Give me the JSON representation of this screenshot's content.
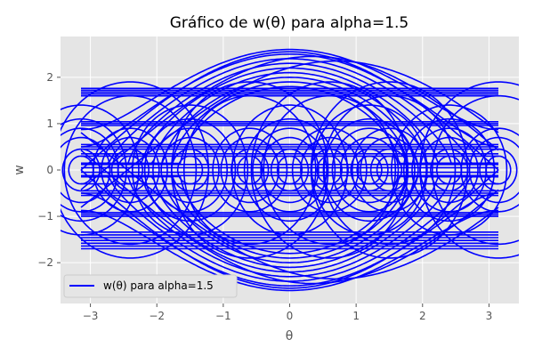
{
  "chart_data": {
    "type": "line",
    "title": "Gráfico de w(θ) para alpha=1.5",
    "xlabel": "θ",
    "ylabel": "w",
    "xlim": [
      -3.45,
      3.45
    ],
    "ylim": [
      -2.88,
      2.88
    ],
    "x_ticks": [
      -3,
      -2,
      -1,
      0,
      1,
      2,
      3
    ],
    "x_tick_labels": [
      "−3",
      "−2",
      "−1",
      "0",
      "1",
      "2",
      "3"
    ],
    "y_ticks": [
      -2,
      -1,
      0,
      1,
      2
    ],
    "y_tick_labels": [
      "−2",
      "−1",
      "0",
      "1",
      "2"
    ],
    "grid": true,
    "style": "ggplot",
    "legend_position": "lower left",
    "line_color": "#0000ff",
    "series": [
      {
        "name": "w(θ) para alpha=1.5",
        "description": "phase portrait trajectories of a pendulum-like system",
        "families": {
          "rotating_upper_w_at_theta0": [
            1.8,
            1.9,
            2.0,
            2.1,
            2.2,
            2.3,
            2.4,
            2.5,
            2.6
          ],
          "rotating_lower_w_at_theta0": [
            -1.8,
            -1.9,
            -2.0,
            -2.1,
            -2.2,
            -2.3,
            -2.4,
            -2.5,
            -2.6
          ],
          "horizontal_levels": [
            1.76,
            1.72,
            1.68,
            1.64,
            1.6,
            1.04,
            1.0,
            0.96,
            0.55,
            0.5,
            0.45,
            0.35,
            0.3,
            0.12,
            0.05,
            -0.05,
            -0.12,
            -0.3,
            -0.45,
            -0.5,
            -0.55,
            -0.92,
            -0.96,
            -1.0,
            -1.34,
            -1.4,
            -1.46,
            -1.52,
            -1.58,
            -1.64,
            -1.7
          ],
          "closed_orbit_centers": [
            -3.14,
            -2.4,
            -1.5,
            -0.6,
            0.0,
            0.6,
            1.2,
            1.5,
            2.4,
            3.14
          ],
          "closed_orbit_amplitudes": [
            0.45,
            0.9,
            1.4,
            1.9,
            0.3,
            0.7,
            1.1,
            1.6
          ]
        }
      }
    ]
  }
}
